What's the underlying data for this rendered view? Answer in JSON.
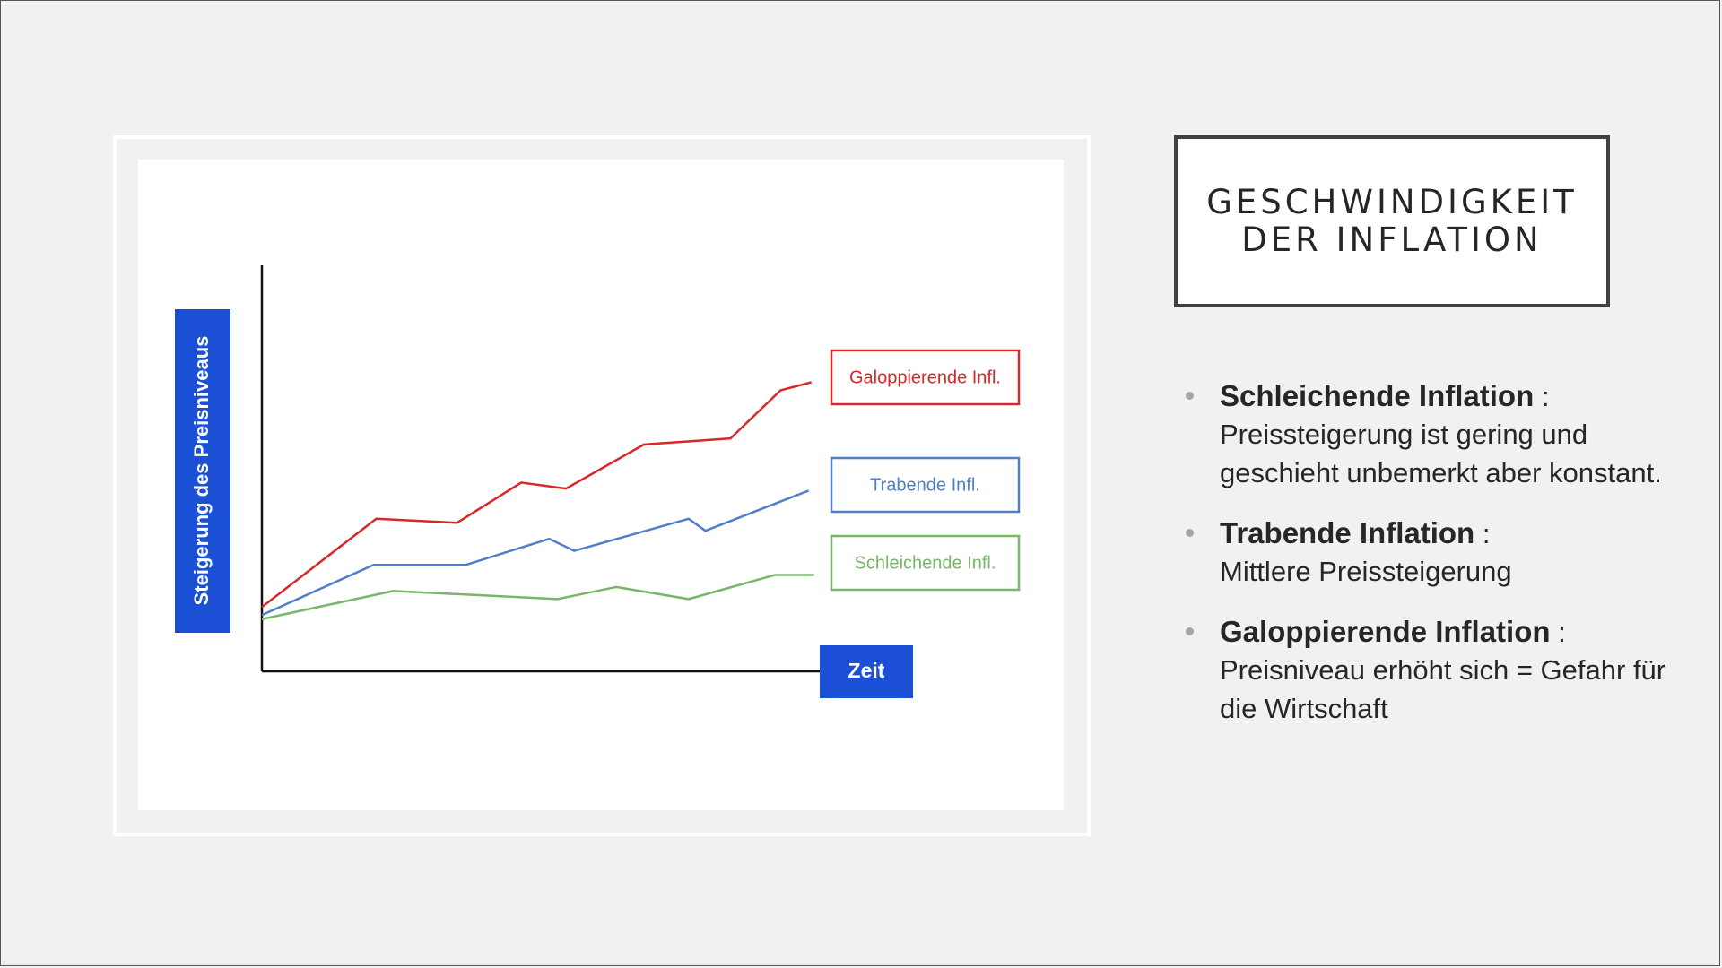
{
  "slide": {
    "title_line1": "GESCHWINDIGKEIT",
    "title_line2": "DER INFLATION"
  },
  "bullets": [
    {
      "heading": "Schleichende Inflation",
      "colon": " :",
      "body": "Preissteigerung ist gering und geschieht unbemerkt aber konstant."
    },
    {
      "heading": "Trabende Inflation",
      "colon": " :",
      "body": "Mittlere Preissteigerung"
    },
    {
      "heading": "Galoppierende Inflation",
      "colon": " :",
      "body": "Preisniveau erhöht sich = Gefahr für die Wirtschaft"
    }
  ],
  "colors": {
    "galoppierend": "#d62828",
    "trabend": "#4f7ecb",
    "schleichend": "#79b56a",
    "axis_label_bg": "#1a4fd6"
  },
  "chart_data": {
    "type": "line",
    "title": "",
    "xlabel": "Zeit",
    "ylabel": "Steigerung des Preisniveaus",
    "xlim": [
      0,
      100
    ],
    "ylim": [
      0,
      100
    ],
    "grid": false,
    "series": [
      {
        "name": "Galoppierende Infl.",
        "color": "#d62828",
        "x": [
          0,
          20.5,
          35,
          46.5,
          54.5,
          68.5,
          84,
          93,
          98.5
        ],
        "y": [
          16,
          38,
          37,
          47,
          45.5,
          56.5,
          58,
          70,
          72
        ]
      },
      {
        "name": "Trabende Infl.",
        "color": "#4f7ecb",
        "x": [
          0,
          20,
          36.5,
          51.5,
          56,
          76.5,
          79.5,
          98
        ],
        "y": [
          14,
          26.5,
          26.5,
          33,
          30,
          38,
          35,
          45
        ]
      },
      {
        "name": "Schleichende Infl.",
        "color": "#79b56a",
        "x": [
          0,
          23.5,
          53,
          63.5,
          76.5,
          92,
          99
        ],
        "y": [
          13,
          20,
          18,
          21,
          18,
          24,
          24
        ]
      }
    ]
  }
}
